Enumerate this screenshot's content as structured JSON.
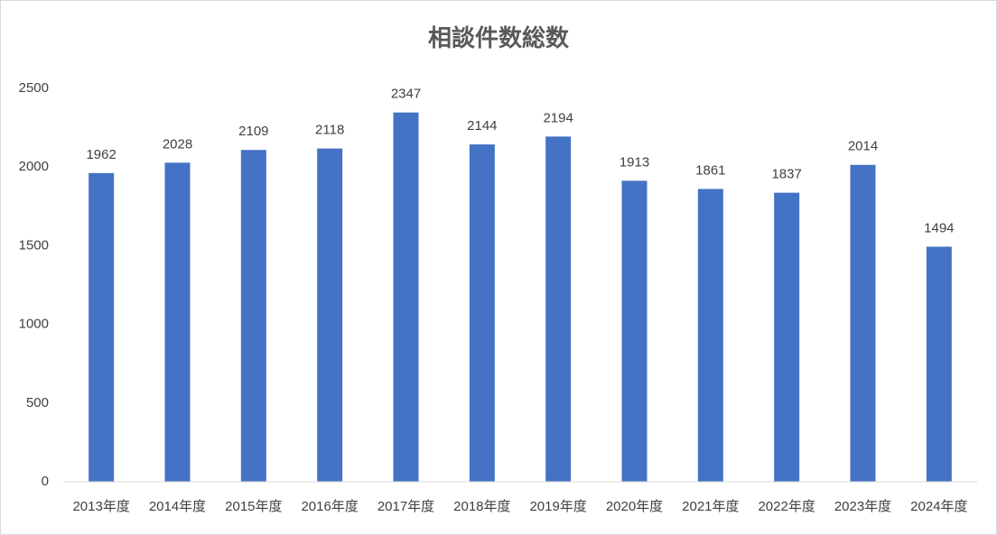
{
  "chart_data": {
    "type": "bar",
    "title": "相談件数総数",
    "categories": [
      "2013年度",
      "2014年度",
      "2015年度",
      "2016年度",
      "2017年度",
      "2018年度",
      "2019年度",
      "2020年度",
      "2021年度",
      "2022年度",
      "2023年度",
      "2024年度"
    ],
    "values": [
      1962,
      2028,
      2109,
      2118,
      2347,
      2144,
      2194,
      1913,
      1861,
      1837,
      2014,
      1494
    ],
    "color": "#4472c4",
    "ylim": [
      0,
      2500
    ],
    "yticks": [
      0,
      500,
      1000,
      1500,
      2000,
      2500
    ],
    "grid": false
  }
}
